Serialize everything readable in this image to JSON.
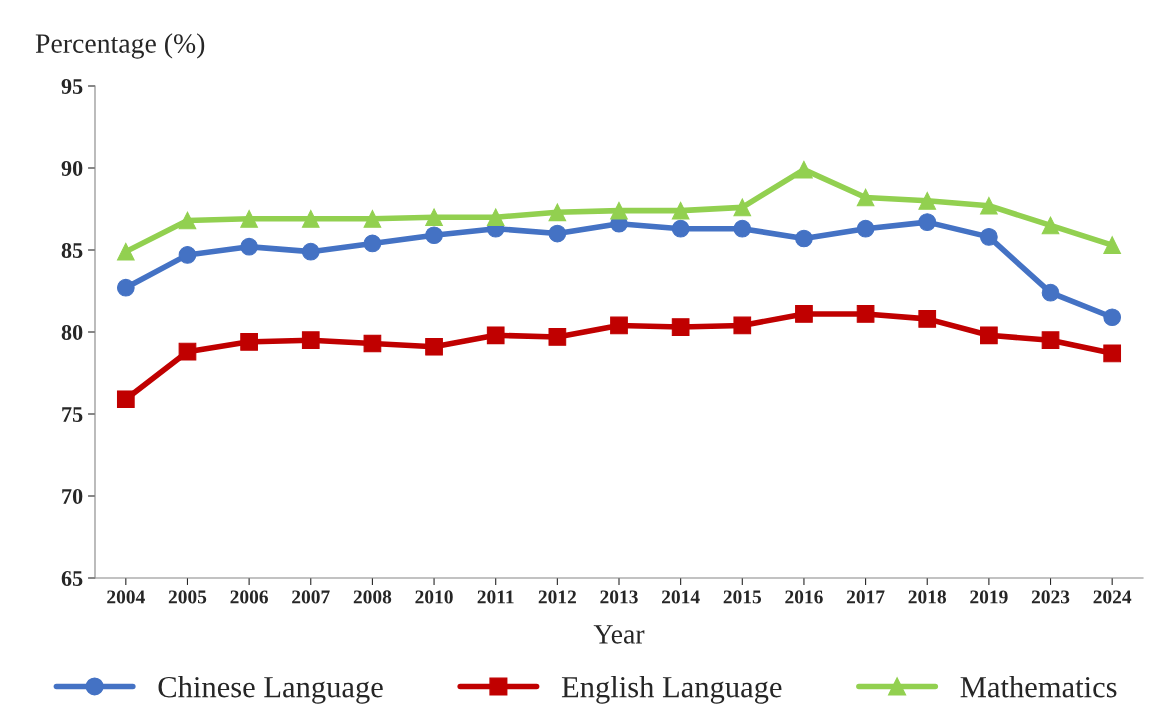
{
  "chart_data": {
    "type": "line",
    "xlabel": "Year",
    "ylabel": "Percentage (%)",
    "categories": [
      "2004",
      "2005",
      "2006",
      "2007",
      "2008",
      "2010",
      "2011",
      "2012",
      "2013",
      "2014",
      "2015",
      "2016",
      "2017",
      "2018",
      "2019",
      "2023",
      "2024"
    ],
    "ylim": [
      65,
      95
    ],
    "yticks": [
      65,
      70,
      75,
      80,
      85,
      90,
      95
    ],
    "grid": false,
    "legend": "bottom",
    "series": [
      {
        "name": "Chinese Language",
        "color": "#4472c4",
        "marker": "circle",
        "values": [
          82.7,
          84.7,
          85.2,
          84.9,
          85.4,
          85.9,
          86.3,
          86.0,
          86.6,
          86.3,
          86.3,
          85.7,
          86.3,
          86.7,
          85.8,
          82.4,
          80.9
        ]
      },
      {
        "name": "English Language",
        "color": "#c00000",
        "marker": "square",
        "values": [
          75.9,
          78.8,
          79.4,
          79.5,
          79.3,
          79.1,
          79.8,
          79.7,
          80.4,
          80.3,
          80.4,
          81.1,
          81.1,
          80.8,
          79.8,
          79.5,
          78.7
        ]
      },
      {
        "name": "Mathematics",
        "color": "#92d050",
        "marker": "triangle",
        "values": [
          84.9,
          86.8,
          86.9,
          86.9,
          86.9,
          87.0,
          87.0,
          87.3,
          87.4,
          87.4,
          87.6,
          89.9,
          88.2,
          88.0,
          87.7,
          86.5,
          85.3
        ]
      }
    ]
  }
}
